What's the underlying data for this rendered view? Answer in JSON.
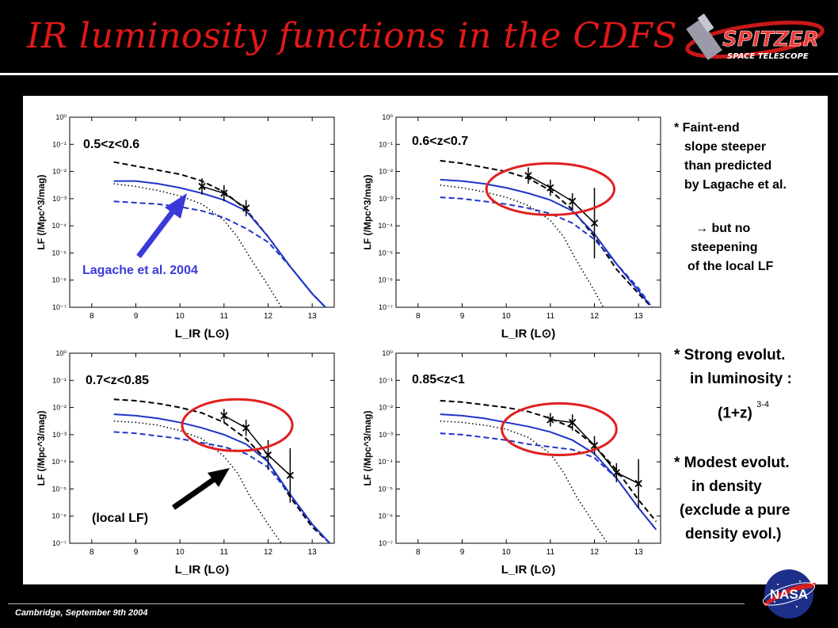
{
  "slide": {
    "title": "IR luminosity functions in the CDFS",
    "footer": "Cambridge, September 9th 2004",
    "logo_top": "SPITZER",
    "logo_bottom": "SPACE TELESCOPE",
    "nasa_logo": "NASA",
    "colors": {
      "title": "#e01818",
      "model_blue": "#1f35c8",
      "circle": "#e02020",
      "arrow_blue": "#3a3ad8"
    }
  },
  "side_notes": {
    "faint_end": [
      "* Faint-end",
      "slope steeper",
      "than predicted",
      "by Lagache et al."
    ],
    "no_steepening": [
      "→  but no",
      "steepening",
      "of the local LF"
    ],
    "strong_evolution": [
      "* Strong evolut.",
      "in luminosity :"
    ],
    "formula_base": "(1+z)",
    "formula_exp": "3-4",
    "modest_evolution": [
      "* Modest evolut.",
      "in density",
      "(exclude a pure",
      "density evol.)"
    ]
  },
  "annotations": {
    "lagache": "Lagache et al. 2004",
    "local": "(local LF)"
  },
  "chart_data": [
    {
      "type": "line",
      "label": "0.5<z<0.6",
      "xlabel": "L_IR (L⊙)",
      "ylabel": "LF (/Mpc^3/mag)",
      "xlim": [
        7.5,
        13.5
      ],
      "ylim_log10": [
        -7,
        0
      ],
      "x_ticks": [
        8,
        9,
        10,
        11,
        12,
        13
      ],
      "y_tick_labels": [
        "10⁰",
        "10⁻¹",
        "10⁻²",
        "10⁻³",
        "10⁻⁴",
        "10⁻⁵",
        "10⁻⁶",
        "10⁻⁷"
      ],
      "series": [
        {
          "style": "black-dashed",
          "x": [
            8.5,
            9.0,
            9.5,
            10.0,
            10.5,
            11.0,
            11.5,
            12.0,
            12.5,
            13.0,
            13.3
          ],
          "log_y": [
            -1.65,
            -1.8,
            -1.95,
            -2.1,
            -2.35,
            -2.75,
            -3.4,
            -4.4,
            -5.5,
            -6.5,
            -7.0
          ]
        },
        {
          "style": "black-dotted",
          "x": [
            8.5,
            9.0,
            9.5,
            10.0,
            10.5,
            11.0,
            11.3,
            11.6,
            12.0,
            12.3
          ],
          "log_y": [
            -2.45,
            -2.55,
            -2.7,
            -2.9,
            -3.2,
            -3.8,
            -4.4,
            -5.2,
            -6.2,
            -7.0
          ]
        },
        {
          "style": "blue-solid",
          "x": [
            8.5,
            9.0,
            9.5,
            10.0,
            10.5,
            11.0,
            11.5,
            12.0,
            12.5,
            13.0,
            13.3
          ],
          "log_y": [
            -2.35,
            -2.35,
            -2.45,
            -2.6,
            -2.8,
            -3.05,
            -3.45,
            -4.4,
            -5.5,
            -6.5,
            -7.0
          ]
        },
        {
          "style": "blue-dashed",
          "x": [
            8.5,
            9.0,
            9.5,
            10.0,
            10.5,
            11.0,
            11.5,
            12.0,
            12.5,
            13.0,
            13.3
          ],
          "log_y": [
            -3.1,
            -3.15,
            -3.2,
            -3.3,
            -3.45,
            -3.7,
            -4.1,
            -4.6,
            -5.5,
            -6.5,
            -7.0
          ]
        },
        {
          "style": "data",
          "x": [
            10.5,
            11.0,
            11.5
          ],
          "log_y": [
            -2.55,
            -2.8,
            -3.35
          ],
          "err": [
            0.3,
            0.3,
            0.3
          ]
        }
      ],
      "circle": null
    },
    {
      "type": "line",
      "label": "0.6<z<0.7",
      "xlabel": "L_IR (L⊙)",
      "ylabel": "LF (/Mpc^3/mag)",
      "xlim": [
        7.5,
        13.5
      ],
      "ylim_log10": [
        -7,
        0
      ],
      "x_ticks": [
        8,
        9,
        10,
        11,
        12,
        13
      ],
      "y_tick_labels": [
        "10⁰",
        "10⁻¹",
        "10⁻²",
        "10⁻³",
        "10⁻⁴",
        "10⁻⁵",
        "10⁻⁶",
        "10⁻⁷"
      ],
      "series": [
        {
          "style": "black-dashed",
          "x": [
            8.5,
            9.0,
            9.5,
            10.0,
            10.5,
            11.0,
            11.5,
            12.0,
            12.5,
            13.0,
            13.3
          ],
          "log_y": [
            -1.6,
            -1.7,
            -1.85,
            -2.0,
            -2.25,
            -2.7,
            -3.4,
            -4.4,
            -5.6,
            -6.5,
            -7.0
          ]
        },
        {
          "style": "black-dotted",
          "x": [
            8.5,
            9.0,
            9.5,
            10.0,
            10.5,
            11.0,
            11.3,
            11.6,
            12.0,
            12.2
          ],
          "log_y": [
            -2.5,
            -2.6,
            -2.75,
            -2.95,
            -3.25,
            -3.8,
            -4.4,
            -5.3,
            -6.4,
            -7.0
          ]
        },
        {
          "style": "blue-solid",
          "x": [
            8.5,
            9.0,
            9.5,
            10.0,
            10.5,
            11.0,
            11.5,
            12.0,
            12.5,
            13.0,
            13.2
          ],
          "log_y": [
            -2.3,
            -2.35,
            -2.45,
            -2.6,
            -2.8,
            -3.05,
            -3.45,
            -4.3,
            -5.4,
            -6.4,
            -6.8
          ]
        },
        {
          "style": "blue-dashed",
          "x": [
            8.5,
            9.0,
            9.5,
            10.0,
            10.5,
            11.0,
            11.5,
            12.0,
            12.5,
            13.0,
            13.3
          ],
          "log_y": [
            -2.95,
            -3.0,
            -3.1,
            -3.2,
            -3.35,
            -3.55,
            -3.9,
            -4.5,
            -5.4,
            -6.3,
            -7.0
          ]
        },
        {
          "style": "data",
          "x": [
            10.5,
            11.0,
            11.5,
            12.0
          ],
          "log_y": [
            -2.15,
            -2.6,
            -3.1,
            -3.9
          ],
          "err": [
            0.3,
            0.3,
            0.3,
            1.3
          ]
        }
      ],
      "circle": {
        "cx": 11.0,
        "cy": -2.65,
        "rx": 1.45,
        "ry": 0.95
      }
    },
    {
      "type": "line",
      "label": "0.7<z<0.85",
      "xlabel": "L_IR (L⊙)",
      "ylabel": "LF (/Mpc^3/mag)",
      "xlim": [
        7.5,
        13.5
      ],
      "ylim_log10": [
        -7,
        0
      ],
      "x_ticks": [
        8,
        9,
        10,
        11,
        12,
        13
      ],
      "y_tick_labels": [
        "10⁰",
        "10⁻¹",
        "10⁻²",
        "10⁻³",
        "10⁻⁴",
        "10⁻⁵",
        "10⁻⁶",
        "10⁻⁷"
      ],
      "series": [
        {
          "style": "black-dashed",
          "x": [
            8.5,
            9.0,
            9.5,
            10.0,
            10.5,
            11.0,
            11.5,
            12.0,
            12.5,
            13.0,
            13.4
          ],
          "log_y": [
            -1.7,
            -1.75,
            -1.85,
            -2.0,
            -2.2,
            -2.55,
            -3.15,
            -4.0,
            -5.3,
            -6.4,
            -7.0
          ]
        },
        {
          "style": "black-dotted",
          "x": [
            8.5,
            9.0,
            9.5,
            10.0,
            10.5,
            11.0,
            11.3,
            11.6,
            12.0,
            12.3
          ],
          "log_y": [
            -2.5,
            -2.55,
            -2.65,
            -2.85,
            -3.15,
            -3.8,
            -4.4,
            -5.3,
            -6.3,
            -7.0
          ]
        },
        {
          "style": "blue-solid",
          "x": [
            8.5,
            9.0,
            9.5,
            10.0,
            10.5,
            11.0,
            11.5,
            12.0,
            12.5,
            13.0,
            13.4
          ],
          "log_y": [
            -2.25,
            -2.3,
            -2.4,
            -2.55,
            -2.75,
            -3.0,
            -3.35,
            -4.0,
            -5.2,
            -6.3,
            -7.0
          ]
        },
        {
          "style": "blue-dashed",
          "x": [
            8.5,
            9.0,
            9.5,
            10.0,
            10.5,
            11.0,
            11.5,
            12.0,
            12.5,
            13.0,
            13.4
          ],
          "log_y": [
            -2.9,
            -2.95,
            -3.05,
            -3.15,
            -3.3,
            -3.45,
            -3.7,
            -4.2,
            -5.2,
            -6.3,
            -7.0
          ]
        },
        {
          "style": "data",
          "x": [
            11.0,
            11.5,
            12.0,
            12.5
          ],
          "log_y": [
            -2.3,
            -2.75,
            -3.75,
            -4.5
          ],
          "err": [
            0.25,
            0.3,
            0.55,
            1.0
          ]
        }
      ],
      "circle": {
        "cx": 11.3,
        "cy": -2.65,
        "rx": 1.25,
        "ry": 0.95
      }
    },
    {
      "type": "line",
      "label": "0.85<z<1",
      "xlabel": "L_IR (L⊙)",
      "ylabel": "LF (/Mpc^3/mag)",
      "xlim": [
        7.5,
        13.5
      ],
      "ylim_log10": [
        -7,
        0
      ],
      "x_ticks": [
        8,
        9,
        10,
        11,
        12,
        13
      ],
      "y_tick_labels": [
        "10⁰",
        "10⁻¹",
        "10⁻²",
        "10⁻³",
        "10⁻⁴",
        "10⁻⁵",
        "10⁻⁶",
        "10⁻⁷"
      ],
      "series": [
        {
          "style": "black-dashed",
          "x": [
            8.5,
            9.0,
            9.5,
            10.0,
            10.5,
            11.0,
            11.5,
            12.0,
            12.5,
            13.0,
            13.4
          ],
          "log_y": [
            -1.75,
            -1.8,
            -1.9,
            -2.0,
            -2.15,
            -2.4,
            -2.75,
            -3.4,
            -4.3,
            -5.4,
            -6.2
          ]
        },
        {
          "style": "black-dotted",
          "x": [
            8.5,
            9.0,
            9.5,
            10.0,
            10.5,
            11.0,
            11.3,
            11.6,
            12.0,
            12.3
          ],
          "log_y": [
            -2.5,
            -2.55,
            -2.65,
            -2.8,
            -3.1,
            -3.7,
            -4.4,
            -5.3,
            -6.3,
            -7.0
          ]
        },
        {
          "style": "blue-solid",
          "x": [
            8.5,
            9.0,
            9.5,
            10.0,
            10.5,
            11.0,
            11.5,
            12.0,
            12.5,
            13.0,
            13.4
          ],
          "log_y": [
            -2.25,
            -2.3,
            -2.4,
            -2.55,
            -2.7,
            -2.9,
            -3.2,
            -3.7,
            -4.6,
            -5.7,
            -6.5
          ]
        },
        {
          "style": "blue-dashed",
          "x": [
            8.5,
            9.0,
            9.5,
            10.0,
            10.5,
            11.0,
            11.5,
            12.0,
            12.5,
            13.0,
            13.4
          ],
          "log_y": [
            -2.95,
            -3.0,
            -3.1,
            -3.2,
            -3.35,
            -3.45,
            -3.55,
            -3.85,
            -4.6,
            -5.7,
            -6.5
          ]
        },
        {
          "style": "data",
          "x": [
            11.0,
            11.5,
            12.0,
            12.5,
            13.0
          ],
          "log_y": [
            -2.45,
            -2.55,
            -3.4,
            -4.4,
            -4.8
          ],
          "err": [
            0.25,
            0.3,
            0.35,
            0.35,
            0.9
          ]
        }
      ],
      "circle": {
        "cx": 11.2,
        "cy": -2.8,
        "rx": 1.3,
        "ry": 0.95
      }
    }
  ]
}
